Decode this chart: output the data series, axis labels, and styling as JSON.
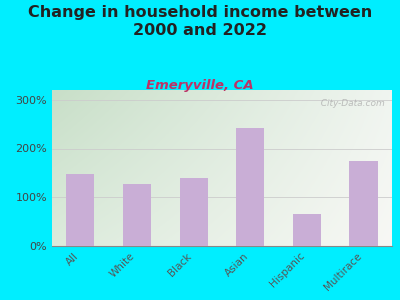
{
  "title": "Change in household income between\n2000 and 2022",
  "subtitle": "Emeryville, CA",
  "categories": [
    "All",
    "White",
    "Black",
    "Asian",
    "Hispanic",
    "Multirace"
  ],
  "values": [
    148,
    128,
    140,
    243,
    65,
    175
  ],
  "bar_color": "#c9aed6",
  "background_outer": "#00eeff",
  "background_plot_topleft": "#c8dfc8",
  "background_plot_bottomright": "#f5f5f0",
  "title_fontsize": 11.5,
  "subtitle_fontsize": 9.5,
  "subtitle_color": "#bb3366",
  "title_color": "#222222",
  "watermark": "  City-Data.com",
  "ylim": [
    0,
    320
  ],
  "yticks": [
    0,
    100,
    200,
    300
  ],
  "ytick_labels": [
    "0%",
    "100%",
    "200%",
    "300%"
  ]
}
